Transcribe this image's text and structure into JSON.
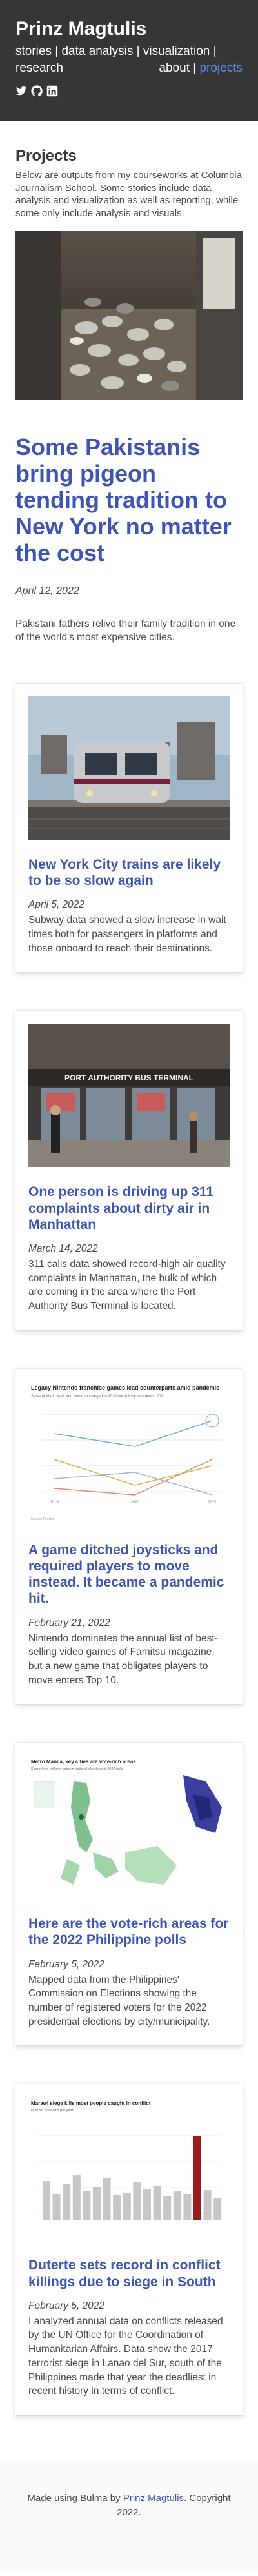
{
  "header": {
    "title": "Prinz Magtulis",
    "nav": {
      "stories": "stories",
      "data_analysis": "data analysis",
      "visualization": "visualization",
      "research": "research",
      "about": "about",
      "projects": "projects",
      "separator": "|"
    },
    "social": [
      "twitter-icon",
      "github-icon",
      "linkedin-icon"
    ]
  },
  "projects": {
    "title": "Projects",
    "intro": "Below are outputs from my courseworks at Columbia Journalism School. Some stories include data analysis and visualization as well as reporting, while some only include analysis and visuals."
  },
  "hero": {
    "title": "Some Pakistanis bring pigeon tending tradition to New York no matter the cost",
    "date": "April 12, 2022",
    "description": "Pakistani fathers relive their family tradition in one of the world's most expensive cities."
  },
  "cards": [
    {
      "title": "New York City trains are likely to be so slow again",
      "date": "April 5, 2022",
      "description": "Subway data showed a slow increase in wait times both for passengers in platforms and those onboard to reach their destinations."
    },
    {
      "title": "One person is driving up 311 complaints about dirty air in Manhattan",
      "date": "March 14, 2022",
      "description": "311 calls data showed record-high air quality complaints in Manhattan, the bulk of which are coming in the area where the Port Authority Bus Terminal is located.",
      "image_sign": "PORT AUTHORITY BUS TERMINAL"
    },
    {
      "title": "A game ditched joysticks and required players to move instead. It became a pandemic hit.",
      "date": "February 21, 2022",
      "description": "Nintendo dominates the annual list of best-selling video games of Famitsu magazine, but a new game that obligates players to move enters Top 10.",
      "image_title": "Legacy Nintendo franchise games lead counterparts amid pandemic",
      "image_subtitle": "Sales of Mario Kart, and Pokemon surged in 2020 but quickly returned in 2021",
      "image_x": [
        "2019",
        "2020",
        "2021"
      ],
      "image_source": "Source: Famitsu"
    },
    {
      "title": "Here are the vote-rich areas for the 2022 Philippine polls",
      "date": "February 5, 2022",
      "description": "Mapped data from the Philippines' Commission on Elections showing the number of registered voters for the 2022 presidential elections by city/municipality.",
      "image_title": "Metro Manila, key cities are vote-rich areas",
      "image_subtitle": "Share from millions voter in national elections of 2022 polls"
    },
    {
      "title": "Duterte sets record in conflict killings due to siege in South",
      "date": "February 5, 2022",
      "description": "I analyzed annual data on conflicts released by the UN Office for the Coordination of Humanitarian Affairs. Data show the 2017 terrorist siege in Lanao del Sur, south of the Philippines made that year the deadliest in recent history in terms of conflict.",
      "image_title": "Marawi siege kills most people caught in conflict",
      "image_subtitle": "Number of deaths per year"
    }
  ],
  "footer": {
    "prefix": "Made using Bulma by ",
    "link": "Prinz Magtulis",
    "suffix": ". Copyright 2022."
  }
}
